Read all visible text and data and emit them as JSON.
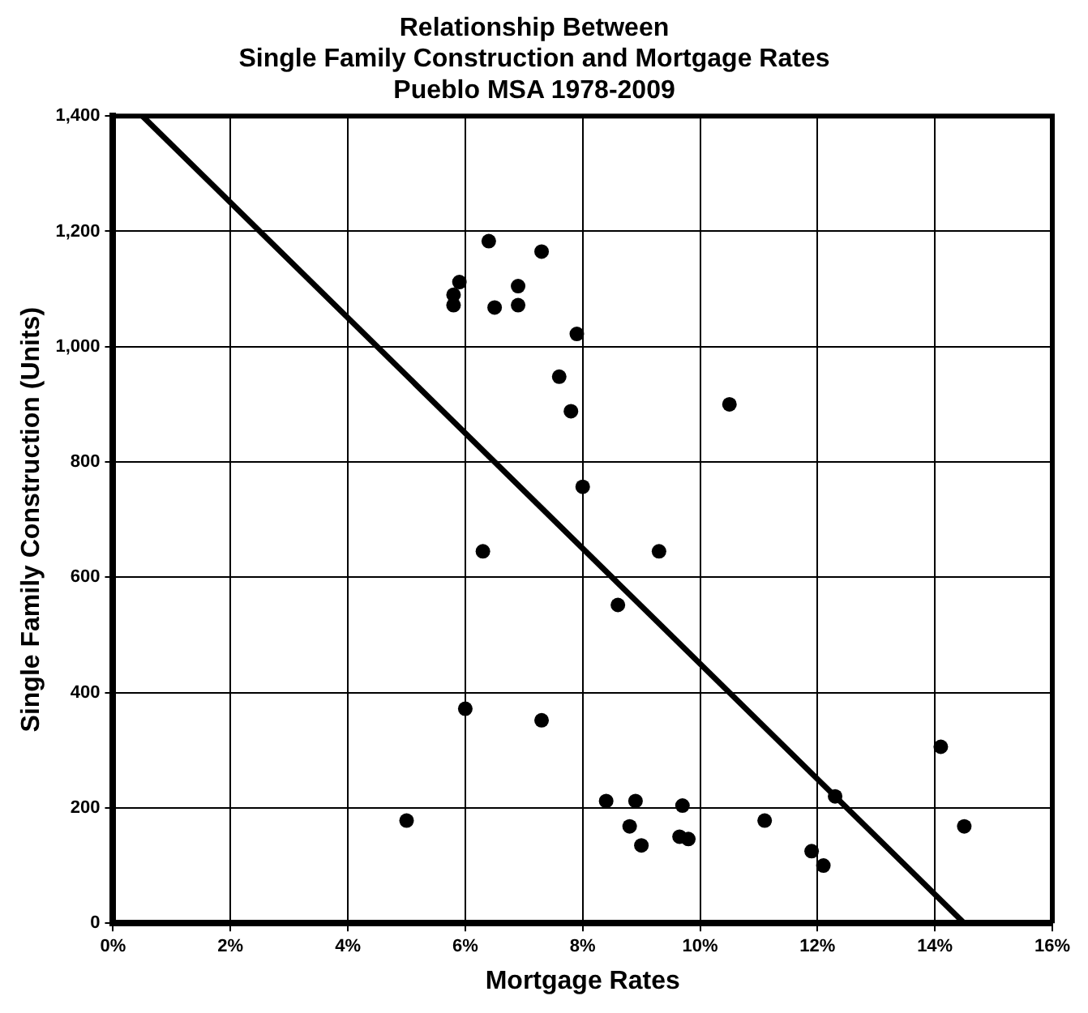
{
  "chart_data": {
    "type": "scatter",
    "title": "Relationship Between\nSingle Family Construction and Mortgage Rates\nPueblo MSA 1978-2009",
    "xlabel": "Mortgage Rates",
    "ylabel": "Single Family Construction (Units)",
    "series": [
      {
        "color": "#000000",
        "marker": "circle",
        "x": [
          5.0,
          5.8,
          5.8,
          5.9,
          6.0,
          6.3,
          6.4,
          6.5,
          6.9,
          6.9,
          7.3,
          7.3,
          7.6,
          7.8,
          7.9,
          8.0,
          8.4,
          8.6,
          8.8,
          8.9,
          9.0,
          9.3,
          9.7,
          9.65,
          9.8,
          10.5,
          11.1,
          11.9,
          12.1,
          12.3,
          14.1,
          14.5
        ],
        "values": [
          178,
          1072,
          1090,
          1112,
          372,
          645,
          1183,
          1068,
          1105,
          1072,
          1165,
          352,
          948,
          888,
          1022,
          757,
          212,
          552,
          168,
          212,
          135,
          645,
          204,
          150,
          146,
          900,
          178,
          125,
          100,
          220,
          306,
          168
        ]
      },
      {
        "type": "line",
        "color": "#000000",
        "marker": "none",
        "line_style": "solid",
        "x": [
          0.5,
          14.5
        ],
        "values": [
          1400,
          0
        ]
      }
    ],
    "xlim": [
      0,
      16
    ],
    "xticks": [
      {
        "value": 0,
        "label": "0%"
      },
      {
        "value": 2,
        "label": "2%"
      },
      {
        "value": 4,
        "label": "4%"
      },
      {
        "value": 6,
        "label": "6%"
      },
      {
        "value": 8,
        "label": "8%"
      },
      {
        "value": 10,
        "label": "10%"
      },
      {
        "value": 12,
        "label": "12%"
      },
      {
        "value": 14,
        "label": "14%"
      },
      {
        "value": 16,
        "label": "16%"
      }
    ],
    "ylim": [
      0,
      1400
    ],
    "yticks": [
      {
        "value": 0,
        "label": "0"
      },
      {
        "value": 200,
        "label": "200"
      },
      {
        "value": 400,
        "label": "400"
      },
      {
        "value": 600,
        "label": "600"
      },
      {
        "value": 800,
        "label": "800"
      },
      {
        "value": 1000,
        "label": "1,000"
      },
      {
        "value": 1200,
        "label": "1,200"
      },
      {
        "value": 1400,
        "label": "1,400"
      }
    ],
    "grid": true,
    "legend": false
  }
}
